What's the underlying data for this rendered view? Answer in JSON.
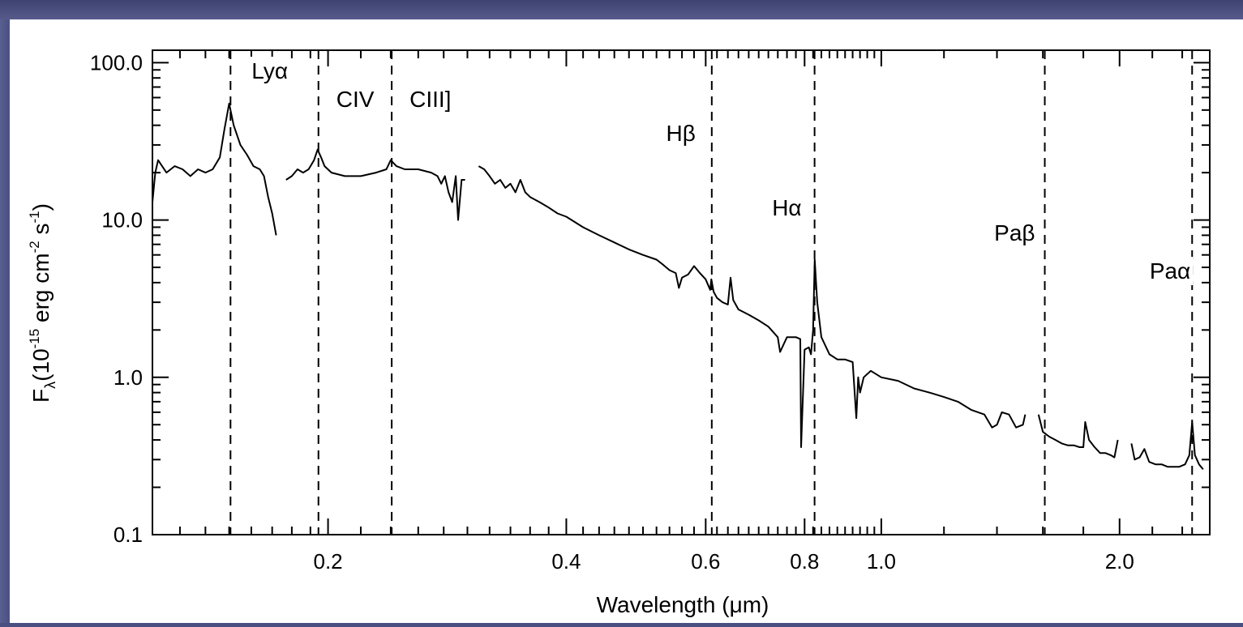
{
  "chart_data": {
    "type": "line",
    "xlabel": "Wavelength (μm)",
    "ylabel_main": "F",
    "ylabel_sub": "λ",
    "ylabel_units": "(10",
    "ylabel_exp1": "-15",
    "ylabel_mid": " erg cm",
    "ylabel_exp2": "-2",
    "ylabel_s": " s",
    "ylabel_exp3": "-1",
    "ylabel_close": ")",
    "xscale": "log",
    "yscale": "log",
    "xlim": [
      0.12,
      2.6
    ],
    "ylim": [
      0.1,
      120
    ],
    "x_tick_labels": [
      {
        "value": 0.2,
        "label": "0.2"
      },
      {
        "value": 0.4,
        "label": "0.4"
      },
      {
        "value": 0.6,
        "label": "0.6"
      },
      {
        "value": 0.8,
        "label": "0.8"
      },
      {
        "value": 1.0,
        "label": "1.0"
      },
      {
        "value": 2.0,
        "label": "2.0"
      }
    ],
    "y_tick_labels": [
      {
        "value": 0.1,
        "label": "0.1"
      },
      {
        "value": 1.0,
        "label": "1.0"
      },
      {
        "value": 10.0,
        "label": "10.0"
      },
      {
        "value": 100.0,
        "label": "100.0"
      }
    ],
    "emission_lines": [
      {
        "name": "Lyα",
        "wavelength": 0.1506
      },
      {
        "name": "CIV",
        "wavelength": 0.1945
      },
      {
        "name": "CIII]",
        "wavelength": 0.2407
      },
      {
        "name": "Hβ",
        "wavelength": 0.6107
      },
      {
        "name": "Hα",
        "wavelength": 0.8236
      },
      {
        "name": "Paβ",
        "wavelength": 1.609
      },
      {
        "name": "Paα",
        "wavelength": 2.47
      }
    ],
    "series": [
      {
        "segments": [
          [
            [
              0.12,
              13
            ],
            [
              0.121,
              20
            ],
            [
              0.122,
              24
            ],
            [
              0.125,
              20
            ],
            [
              0.128,
              22
            ],
            [
              0.131,
              21
            ],
            [
              0.134,
              19
            ],
            [
              0.137,
              21
            ],
            [
              0.14,
              20
            ],
            [
              0.143,
              21
            ],
            [
              0.146,
              25
            ],
            [
              0.148,
              38
            ],
            [
              0.15,
              55
            ],
            [
              0.152,
              40
            ],
            [
              0.155,
              30
            ],
            [
              0.158,
              26
            ],
            [
              0.161,
              22
            ],
            [
              0.164,
              21
            ],
            [
              0.166,
              19
            ],
            [
              0.168,
              14
            ],
            [
              0.17,
              11
            ],
            [
              0.172,
              8
            ]
          ],
          [
            [
              0.177,
              18
            ],
            [
              0.18,
              19
            ],
            [
              0.183,
              21
            ],
            [
              0.186,
              20
            ],
            [
              0.189,
              21
            ],
            [
              0.192,
              24
            ],
            [
              0.194,
              28
            ],
            [
              0.196,
              25
            ],
            [
              0.198,
              22
            ],
            [
              0.202,
              20
            ],
            [
              0.21,
              19
            ],
            [
              0.22,
              19
            ],
            [
              0.23,
              20
            ],
            [
              0.237,
              21
            ],
            [
              0.24,
              24
            ],
            [
              0.244,
              22
            ],
            [
              0.25,
              21
            ],
            [
              0.26,
              21
            ],
            [
              0.27,
              20
            ],
            [
              0.275,
              19
            ],
            [
              0.278,
              17
            ],
            [
              0.281,
              19
            ],
            [
              0.284,
              15
            ],
            [
              0.287,
              13
            ],
            [
              0.29,
              19
            ],
            [
              0.292,
              10
            ],
            [
              0.295,
              18
            ],
            [
              0.298,
              18
            ]
          ],
          [
            [
              0.31,
              22
            ],
            [
              0.315,
              21
            ],
            [
              0.32,
              19
            ],
            [
              0.325,
              17
            ],
            [
              0.33,
              18
            ],
            [
              0.335,
              16
            ],
            [
              0.34,
              17
            ],
            [
              0.345,
              15
            ],
            [
              0.35,
              18
            ],
            [
              0.355,
              15
            ],
            [
              0.36,
              14
            ],
            [
              0.37,
              13
            ],
            [
              0.38,
              12
            ],
            [
              0.39,
              11
            ],
            [
              0.4,
              10.5
            ],
            [
              0.42,
              9
            ],
            [
              0.44,
              8
            ],
            [
              0.46,
              7.2
            ],
            [
              0.48,
              6.5
            ],
            [
              0.5,
              6
            ],
            [
              0.52,
              5.6
            ],
            [
              0.53,
              5.2
            ],
            [
              0.54,
              4.8
            ],
            [
              0.55,
              4.6
            ],
            [
              0.555,
              3.7
            ],
            [
              0.56,
              4.3
            ],
            [
              0.57,
              4.5
            ],
            [
              0.58,
              5.1
            ],
            [
              0.59,
              4.6
            ],
            [
              0.6,
              4.2
            ],
            [
              0.605,
              3.8
            ],
            [
              0.608,
              3.6
            ],
            [
              0.61,
              4.2
            ],
            [
              0.614,
              3.5
            ],
            [
              0.62,
              3.2
            ],
            [
              0.63,
              3.0
            ],
            [
              0.64,
              2.9
            ],
            [
              0.645,
              4.3
            ],
            [
              0.65,
              3.1
            ],
            [
              0.66,
              2.7
            ],
            [
              0.68,
              2.5
            ],
            [
              0.7,
              2.3
            ],
            [
              0.72,
              2.1
            ],
            [
              0.74,
              1.8
            ],
            [
              0.745,
              1.45
            ],
            [
              0.76,
              1.8
            ],
            [
              0.78,
              1.8
            ],
            [
              0.79,
              1.75
            ],
            [
              0.792,
              0.36
            ],
            [
              0.8,
              1.5
            ],
            [
              0.81,
              1.55
            ],
            [
              0.815,
              1.4
            ],
            [
              0.82,
              2.0
            ],
            [
              0.824,
              5.6
            ],
            [
              0.83,
              3.0
            ],
            [
              0.84,
              1.8
            ],
            [
              0.86,
              1.4
            ],
            [
              0.88,
              1.3
            ],
            [
              0.9,
              1.3
            ],
            [
              0.92,
              1.25
            ],
            [
              0.93,
              0.55
            ],
            [
              0.935,
              1.0
            ],
            [
              0.94,
              0.8
            ],
            [
              0.95,
              1.0
            ],
            [
              0.96,
              1.05
            ],
            [
              0.97,
              1.1
            ],
            [
              1.0,
              1.0
            ],
            [
              1.05,
              0.95
            ],
            [
              1.1,
              0.85
            ],
            [
              1.15,
              0.8
            ],
            [
              1.2,
              0.75
            ],
            [
              1.25,
              0.7
            ],
            [
              1.3,
              0.62
            ],
            [
              1.35,
              0.58
            ],
            [
              1.38,
              0.48
            ],
            [
              1.4,
              0.5
            ],
            [
              1.42,
              0.6
            ],
            [
              1.45,
              0.58
            ],
            [
              1.48,
              0.48
            ],
            [
              1.51,
              0.5
            ],
            [
              1.52,
              0.58
            ]
          ],
          [
            [
              1.58,
              0.58
            ],
            [
              1.6,
              0.45
            ],
            [
              1.63,
              0.42
            ],
            [
              1.66,
              0.4
            ],
            [
              1.69,
              0.38
            ],
            [
              1.72,
              0.37
            ],
            [
              1.75,
              0.37
            ],
            [
              1.78,
              0.36
            ],
            [
              1.8,
              0.36
            ],
            [
              1.81,
              0.52
            ],
            [
              1.83,
              0.4
            ],
            [
              1.86,
              0.36
            ],
            [
              1.89,
              0.33
            ],
            [
              1.92,
              0.33
            ],
            [
              1.95,
              0.32
            ],
            [
              1.97,
              0.31
            ],
            [
              1.99,
              0.4
            ]
          ],
          [
            [
              2.07,
              0.38
            ],
            [
              2.09,
              0.3
            ],
            [
              2.12,
              0.31
            ],
            [
              2.15,
              0.35
            ],
            [
              2.18,
              0.29
            ],
            [
              2.22,
              0.28
            ],
            [
              2.26,
              0.28
            ],
            [
              2.3,
              0.27
            ],
            [
              2.34,
              0.27
            ],
            [
              2.38,
              0.27
            ],
            [
              2.42,
              0.28
            ],
            [
              2.45,
              0.32
            ],
            [
              2.47,
              0.52
            ],
            [
              2.49,
              0.32
            ],
            [
              2.52,
              0.28
            ],
            [
              2.55,
              0.26
            ]
          ]
        ]
      }
    ]
  }
}
